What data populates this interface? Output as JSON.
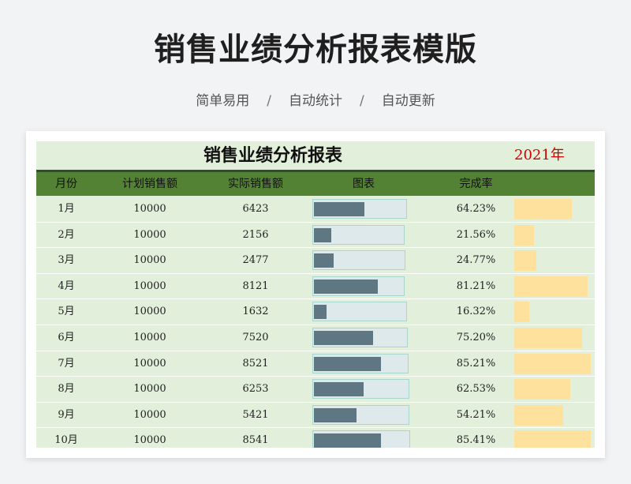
{
  "hero": {
    "title": "销售业绩分析报表模版",
    "features": [
      "简单易用",
      "自动统计",
      "自动更新"
    ],
    "separator": "/"
  },
  "sheet": {
    "title": "销售业绩分析报表",
    "year": "2021年",
    "columns": [
      "月份",
      "计划销售额",
      "实际销售额",
      "图表",
      "完成率"
    ],
    "rows": [
      {
        "month": "1月",
        "plan": "10000",
        "actual": "6423",
        "rate": "64.23%",
        "ratio": 0.6423
      },
      {
        "month": "2月",
        "plan": "10000",
        "actual": "2156",
        "rate": "21.56%",
        "ratio": 0.2156
      },
      {
        "month": "3月",
        "plan": "10000",
        "actual": "2477",
        "rate": "24.77%",
        "ratio": 0.2477
      },
      {
        "month": "4月",
        "plan": "10000",
        "actual": "8121",
        "rate": "81.21%",
        "ratio": 0.8121
      },
      {
        "month": "5月",
        "plan": "10000",
        "actual": "1632",
        "rate": "16.32%",
        "ratio": 0.1632
      },
      {
        "month": "6月",
        "plan": "10000",
        "actual": "7520",
        "rate": "75.20%",
        "ratio": 0.752
      },
      {
        "month": "7月",
        "plan": "10000",
        "actual": "8521",
        "rate": "85.21%",
        "ratio": 0.8521
      },
      {
        "month": "8月",
        "plan": "10000",
        "actual": "6253",
        "rate": "62.53%",
        "ratio": 0.6253
      },
      {
        "month": "9月",
        "plan": "10000",
        "actual": "5421",
        "rate": "54.21%",
        "ratio": 0.5421
      },
      {
        "month": "10月",
        "plan": "10000",
        "actual": "8541",
        "rate": "85.41%",
        "ratio": 0.8541
      }
    ]
  },
  "colors": {
    "header": "#548235",
    "sheet_bg": "#e2efda",
    "bar": "#5f7782",
    "rate_bar": "#ffe19e",
    "year": "#d40000"
  }
}
